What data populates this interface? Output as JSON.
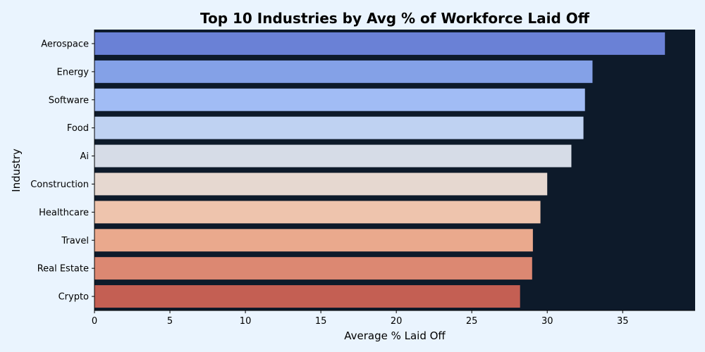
{
  "chart_data": {
    "type": "bar",
    "orientation": "horizontal",
    "title": "Top 10 Industries by Avg % of Workforce Laid Off",
    "xlabel": "Average % Laid Off",
    "ylabel": "Industry",
    "xlim": [
      0,
      39.8
    ],
    "xticks": [
      0,
      5,
      10,
      15,
      20,
      25,
      30,
      35
    ],
    "grid": false,
    "legend": "none",
    "plot_background": "#0d1a2a",
    "categories": [
      "Aerospace",
      "Energy",
      "Software",
      "Food",
      "Ai",
      "Construction",
      "Healthcare",
      "Travel",
      "Real Estate",
      "Crypto"
    ],
    "values": [
      37.8,
      33.0,
      32.5,
      32.4,
      31.6,
      30.0,
      29.55,
      29.05,
      29.0,
      28.2
    ],
    "colors": [
      "#6a81d6",
      "#84a1e7",
      "#a1bcf5",
      "#bfd2f2",
      "#d6dce7",
      "#e6d8d0",
      "#eec4ad",
      "#eaa98d",
      "#dc8872",
      "#c45f53"
    ]
  }
}
